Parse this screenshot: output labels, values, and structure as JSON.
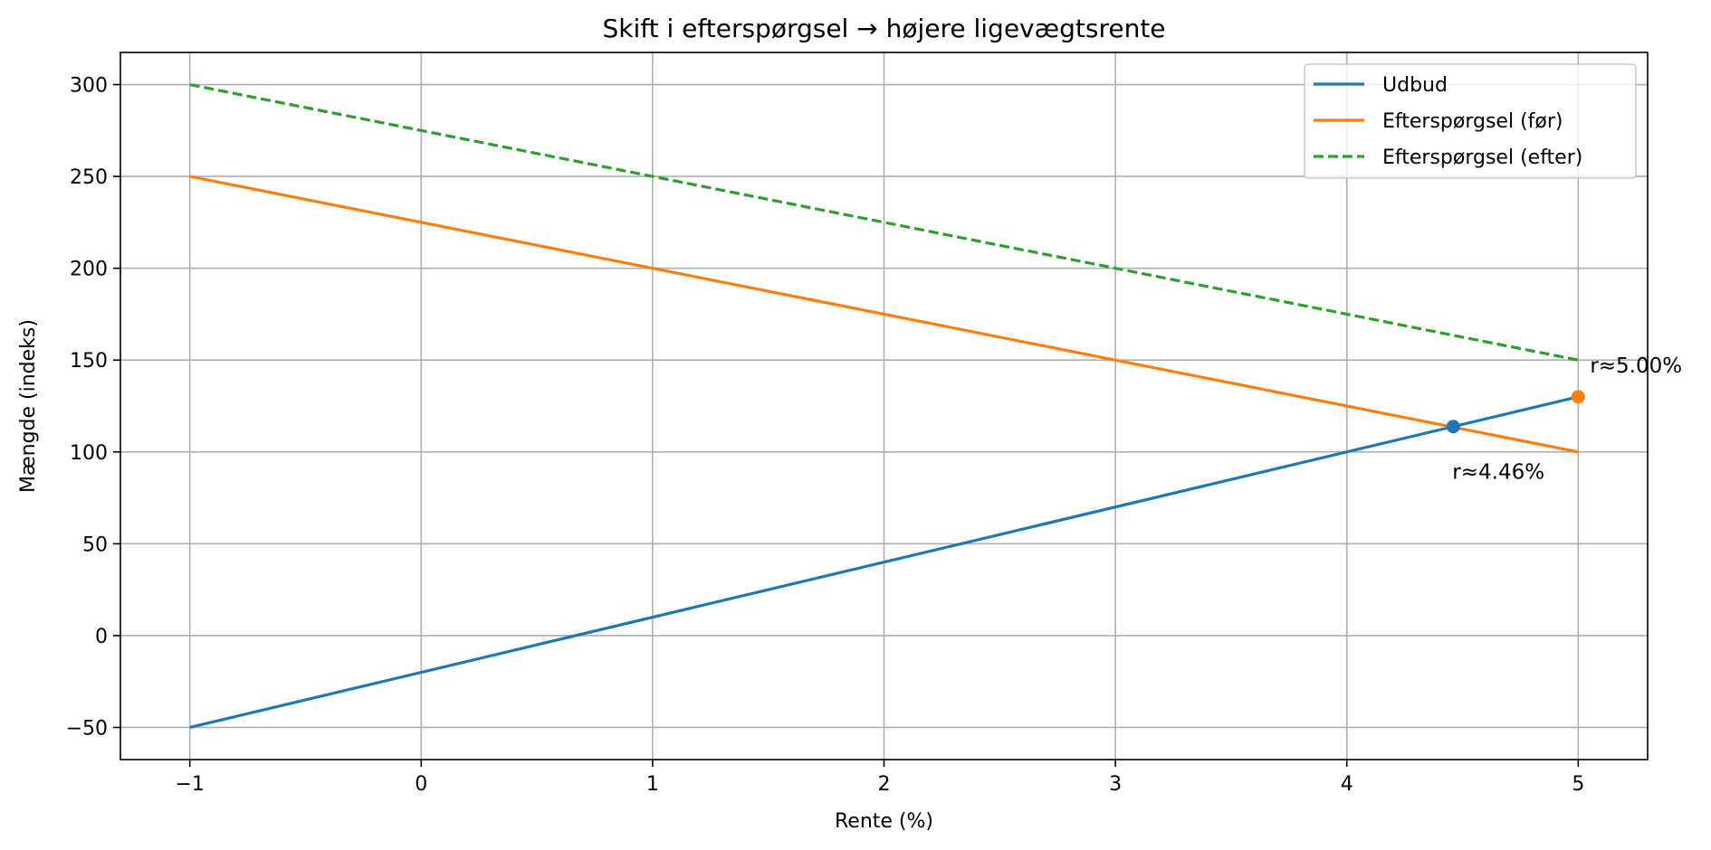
{
  "chart_data": {
    "type": "line",
    "title": "Skift i efterspørgsel → højere ligevægtsrente",
    "xlabel": "Rente (%)",
    "ylabel": "Mængde (indeks)",
    "xlim": [
      -1.3,
      5.3
    ],
    "ylim": [
      -67.5,
      317.5
    ],
    "xticks": [
      -1,
      0,
      1,
      2,
      3,
      4,
      5
    ],
    "yticks": [
      -50,
      0,
      50,
      100,
      150,
      200,
      250,
      300
    ],
    "xtick_labels": [
      "−1",
      "0",
      "1",
      "2",
      "3",
      "4",
      "5"
    ],
    "ytick_labels": [
      "−50",
      "0",
      "50",
      "100",
      "150",
      "200",
      "250",
      "300"
    ],
    "grid": true,
    "legend_position": "top-right",
    "series": [
      {
        "name": "Udbud",
        "color": "#1f77b4",
        "style": "solid",
        "x": [
          -1,
          5
        ],
        "y": [
          -50,
          130
        ]
      },
      {
        "name": "Efterspørgsel (før)",
        "color": "#ff7f0e",
        "style": "solid",
        "x": [
          -1,
          5
        ],
        "y": [
          250,
          100
        ]
      },
      {
        "name": "Efterspørgsel (efter)",
        "color": "#2ca02c",
        "style": "dashed",
        "x": [
          -1,
          5
        ],
        "y": [
          300,
          150
        ]
      }
    ],
    "points": [
      {
        "x": 4.46,
        "y": 113.8,
        "color": "#1f77b4",
        "label": "r≈4.46%",
        "label_position": "below"
      },
      {
        "x": 5.0,
        "y": 130,
        "color": "#ff7f0e",
        "label": "r≈5.00%",
        "label_position": "above-right"
      }
    ]
  }
}
